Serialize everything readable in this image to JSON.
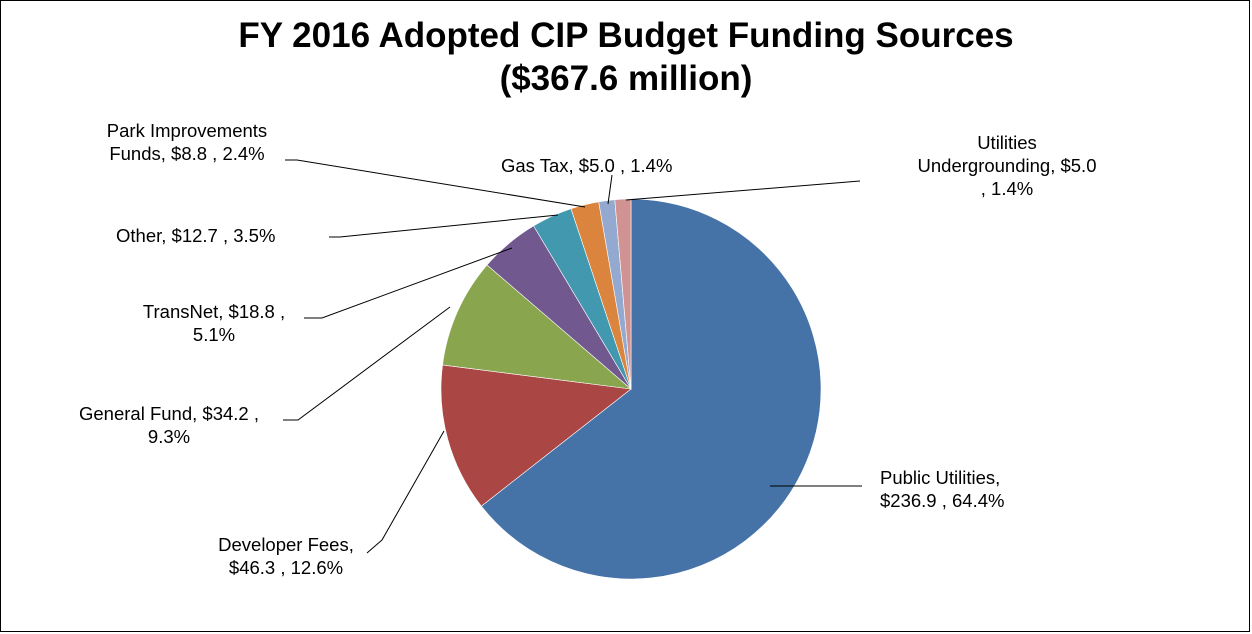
{
  "chart_data": {
    "type": "pie",
    "title": "FY 2016 Adopted CIP Budget Funding Sources",
    "subtitle": "($367.6 million)",
    "slices": [
      {
        "name": "Public Utilities",
        "value": 236.9,
        "percent": 64.4,
        "color": "#4572A7",
        "label_lines": [
          "Public Utilities,",
          "$236.9 , 64.4%"
        ]
      },
      {
        "name": "Developer Fees",
        "value": 46.3,
        "percent": 12.6,
        "color": "#AA4643",
        "label_lines": [
          "Developer Fees,",
          "$46.3 , 12.6%"
        ]
      },
      {
        "name": "General Fund",
        "value": 34.2,
        "percent": 9.3,
        "color": "#89A54E",
        "label_lines": [
          "General Fund,  $34.2 ,",
          "9.3%"
        ]
      },
      {
        "name": "TransNet",
        "value": 18.8,
        "percent": 5.1,
        "color": "#71588F",
        "label_lines": [
          "TransNet,  $18.8 ,",
          "5.1%"
        ]
      },
      {
        "name": "Other",
        "value": 12.7,
        "percent": 3.5,
        "color": "#4198AF",
        "label_lines": [
          "Other,  $12.7 , 3.5%"
        ]
      },
      {
        "name": "Park Improvements Funds",
        "value": 8.8,
        "percent": 2.4,
        "color": "#DB843D",
        "label_lines": [
          "Park Improvements",
          "Funds,  $8.8 , 2.4%"
        ]
      },
      {
        "name": "Gas Tax",
        "value": 5.0,
        "percent": 1.4,
        "color": "#93A9CF",
        "label_lines": [
          "Gas Tax,  $5.0 , 1.4%"
        ]
      },
      {
        "name": "Utilities Undergrounding",
        "value": 5.0,
        "percent": 1.4,
        "color": "#D19392",
        "label_lines": [
          "Utilities",
          "Undergrounding,  $5.0",
          ", 1.4%"
        ]
      }
    ],
    "start_angle": "12 o'clock",
    "direction": "clockwise",
    "legend": "none"
  }
}
